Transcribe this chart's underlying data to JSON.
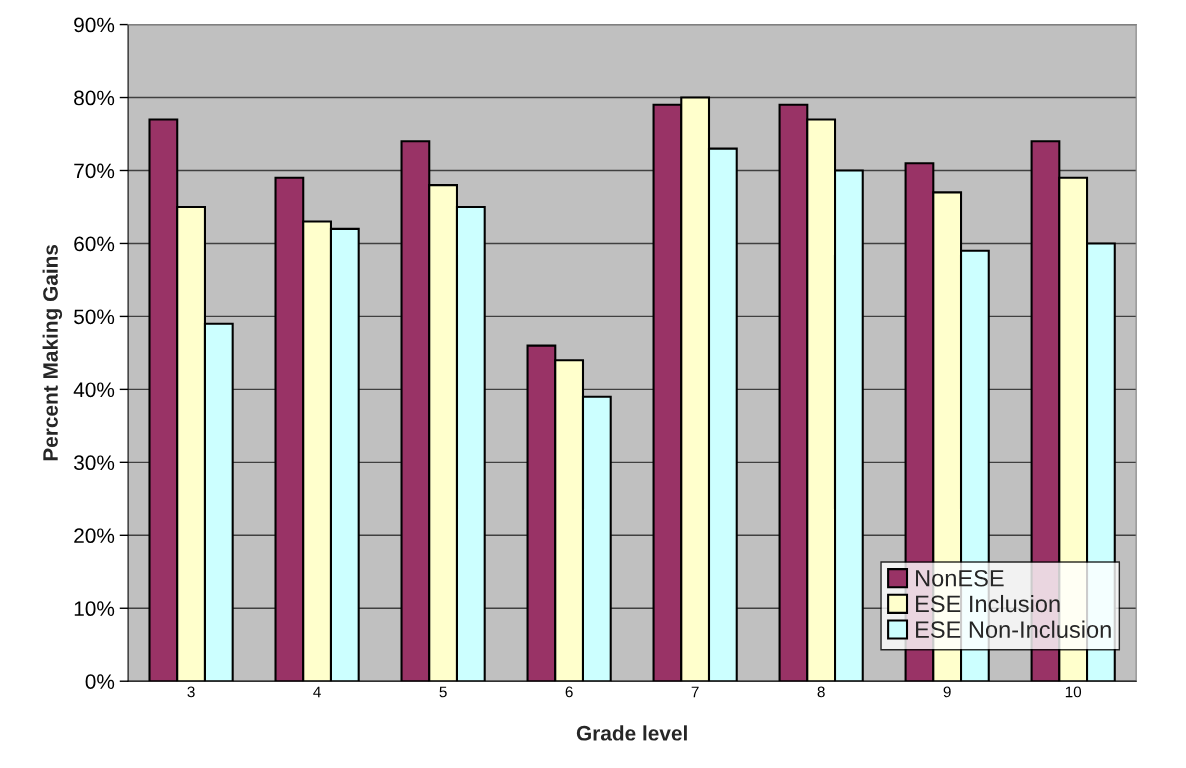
{
  "chart_data": {
    "type": "bar",
    "xlabel": "Grade level",
    "ylabel": "Percent Making Gains",
    "categories": [
      "3",
      "4",
      "5",
      "6",
      "7",
      "8",
      "9",
      "10"
    ],
    "series": [
      {
        "name": "NonESE",
        "color": "#993366",
        "values": [
          77,
          69,
          74,
          46,
          79,
          79,
          71,
          74
        ]
      },
      {
        "name": "ESE Inclusion",
        "color": "#ffffcc",
        "values": [
          65,
          63,
          68,
          44,
          80,
          77,
          67,
          69
        ]
      },
      {
        "name": "ESE Non-Inclusion",
        "color": "#ccffff",
        "values": [
          49,
          62,
          65,
          39,
          73,
          70,
          59,
          60
        ]
      }
    ],
    "ylim": [
      0,
      90
    ],
    "yticks": [
      {
        "value": 0,
        "label": "0%"
      },
      {
        "value": 10,
        "label": "10%"
      },
      {
        "value": 20,
        "label": "20%"
      },
      {
        "value": 30,
        "label": "30%"
      },
      {
        "value": 40,
        "label": "40%"
      },
      {
        "value": 50,
        "label": "50%"
      },
      {
        "value": 60,
        "label": "60%"
      },
      {
        "value": 70,
        "label": "70%"
      },
      {
        "value": 80,
        "label": "80%"
      },
      {
        "value": 90,
        "label": "90%"
      }
    ],
    "grid": "y",
    "legend": "lower right"
  }
}
